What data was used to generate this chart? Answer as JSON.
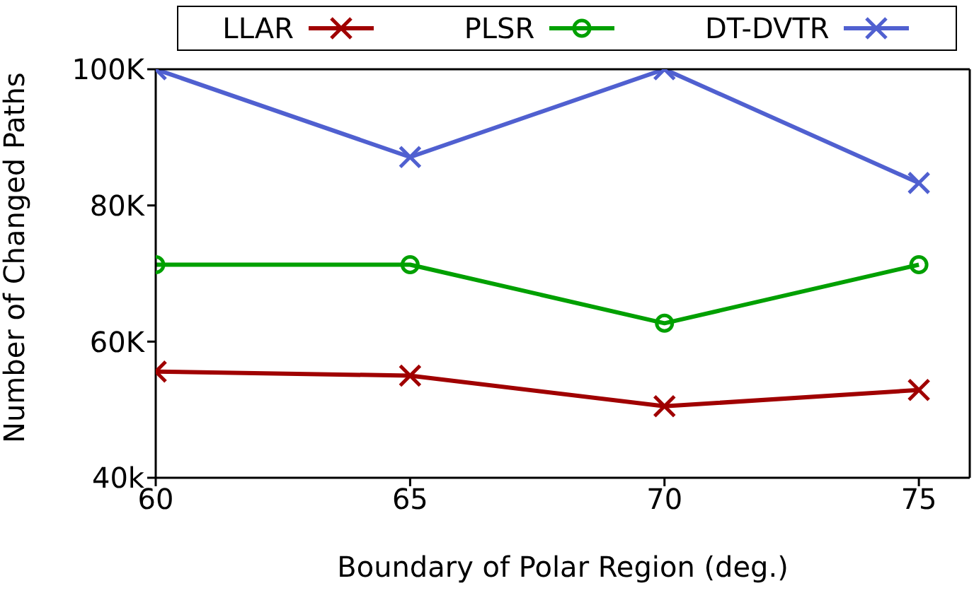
{
  "chart_data": {
    "type": "line",
    "xlabel": "Boundary of  Polar Region (deg.)",
    "ylabel": "Number of Changed Paths",
    "x": [
      60,
      65,
      70,
      75
    ],
    "series": [
      {
        "name": "LLAR",
        "color": "#a00000",
        "marker": "cross",
        "values": [
          55.6,
          55.0,
          50.5,
          52.9
        ]
      },
      {
        "name": "PLSR",
        "color": "#00a000",
        "marker": "circle",
        "values": [
          71.3,
          71.3,
          62.7,
          71.3
        ]
      },
      {
        "name": "DT-DVTR",
        "color": "#5060d0",
        "marker": "cross",
        "values": [
          100,
          87.1,
          100,
          83.3
        ]
      }
    ],
    "xlim": [
      60,
      76
    ],
    "xticks": [
      60,
      65,
      70,
      75
    ],
    "ylim": [
      40,
      100
    ],
    "yticks": [
      {
        "value": 40,
        "label": "40k"
      },
      {
        "value": 60,
        "label": "60K"
      },
      {
        "value": 80,
        "label": "80K"
      },
      {
        "value": 100,
        "label": "100K"
      }
    ],
    "grid": false,
    "legend": "top",
    "line_style": "solid"
  }
}
